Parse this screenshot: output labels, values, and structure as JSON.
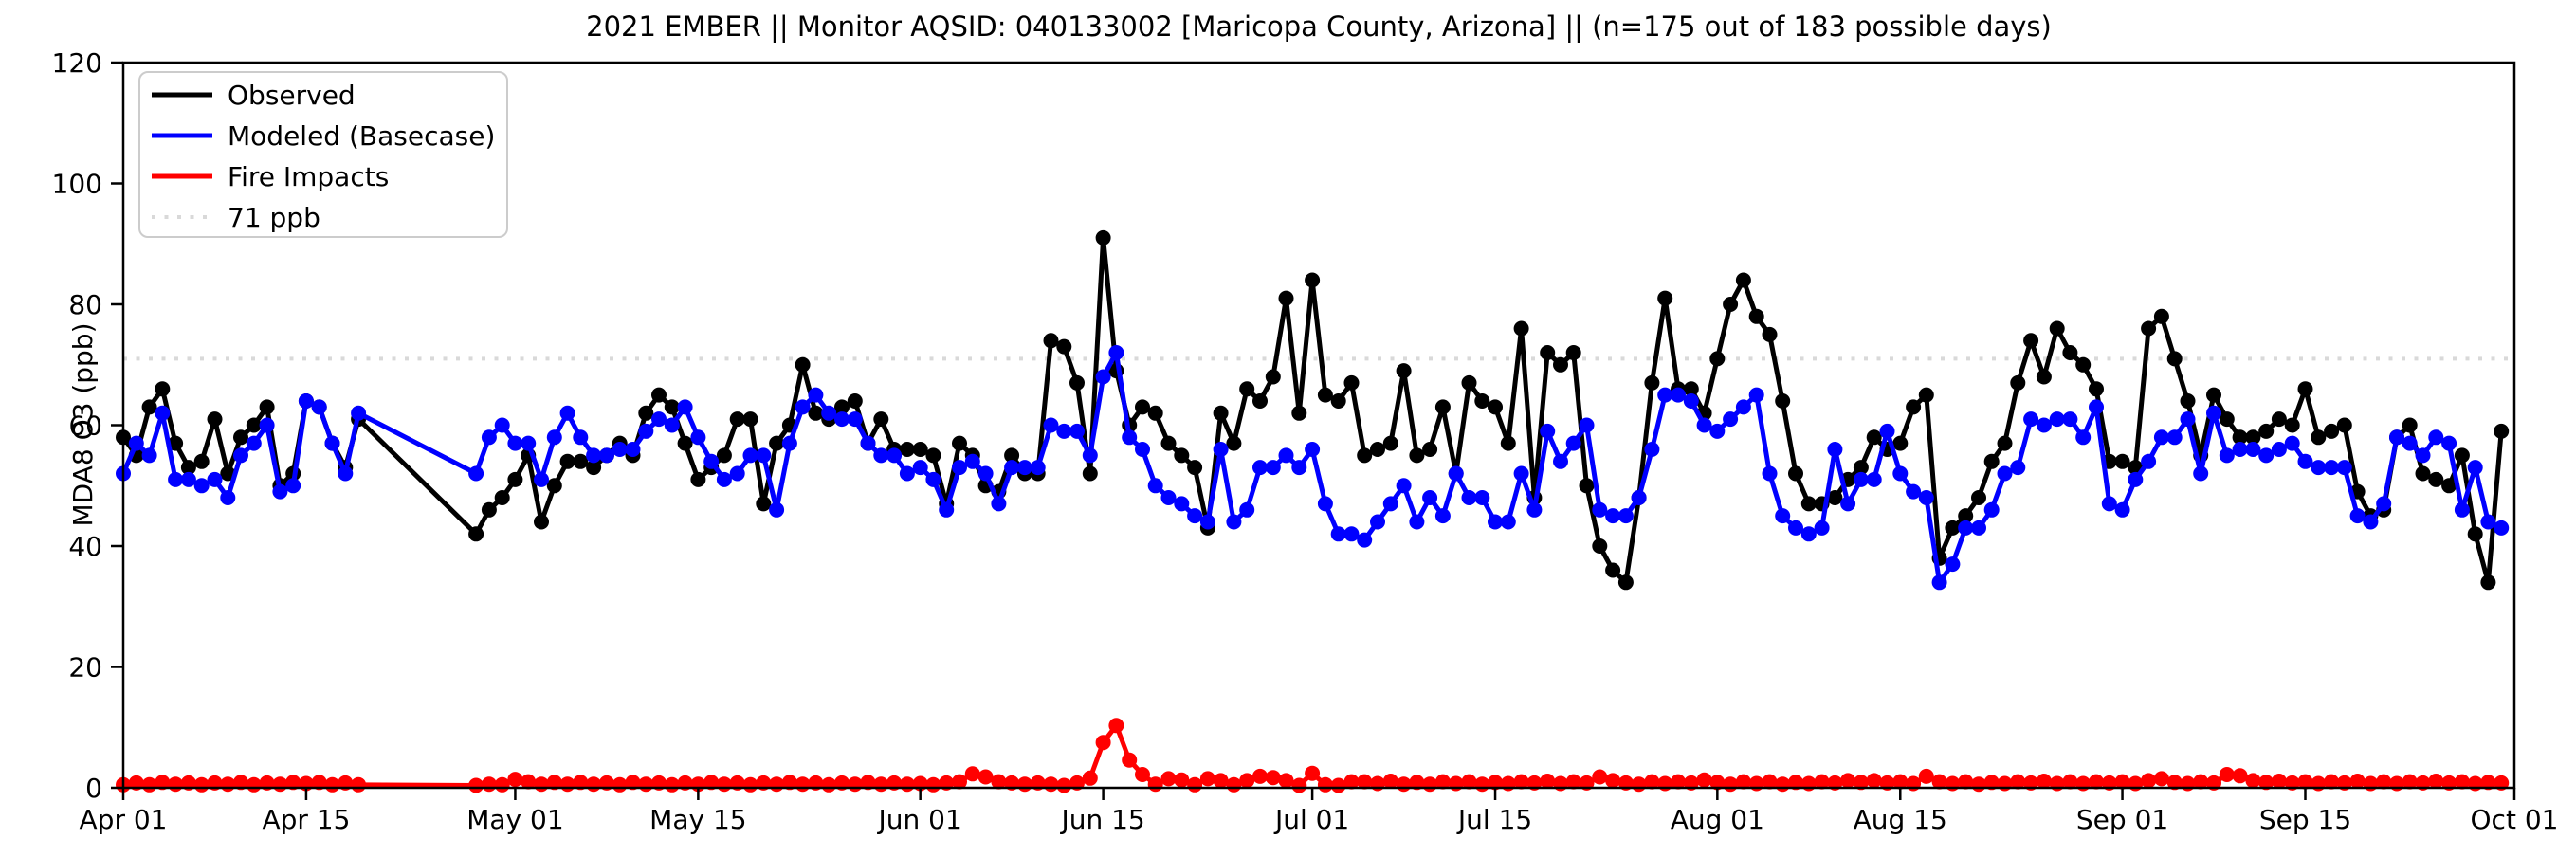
{
  "chart_data": {
    "type": "line",
    "title": "2021 EMBER || Monitor AQSID: 040133002 [Maricopa County, Arizona] || (n=175 out of 183 possible days)",
    "ylabel": "MDA8 O3 (ppb)",
    "ylim": [
      0,
      120
    ],
    "yticks": [
      0,
      20,
      40,
      60,
      80,
      100,
      120
    ],
    "grid": false,
    "legend_position": "upper left",
    "n_days": 183,
    "x_range": [
      "Apr 01",
      "Oct 01"
    ],
    "xticks": [
      {
        "label": "Apr 01",
        "day": 0
      },
      {
        "label": "Apr 15",
        "day": 14
      },
      {
        "label": "May 01",
        "day": 30
      },
      {
        "label": "May 15",
        "day": 44
      },
      {
        "label": "Jun 01",
        "day": 61
      },
      {
        "label": "Jun 15",
        "day": 75
      },
      {
        "label": "Jul 01",
        "day": 91
      },
      {
        "label": "Jul 15",
        "day": 105
      },
      {
        "label": "Aug 01",
        "day": 122
      },
      {
        "label": "Aug 15",
        "day": 136
      },
      {
        "label": "Sep 01",
        "day": 153
      },
      {
        "label": "Sep 15",
        "day": 167
      },
      {
        "label": "Oct 01",
        "day": 183
      }
    ],
    "threshold": {
      "value": 71,
      "label": "71 ppb",
      "color": "#d9d9d9",
      "style": "dotted"
    },
    "legend": [
      {
        "label": "Observed",
        "color": "#000000",
        "style": "solid"
      },
      {
        "label": "Modeled (Basecase)",
        "color": "#0000ff",
        "style": "solid"
      },
      {
        "label": "Fire Impacts",
        "color": "#ff0000",
        "style": "solid"
      },
      {
        "label": "71 ppb",
        "color": "#d9d9d9",
        "style": "dotted"
      }
    ],
    "series": [
      {
        "id": "observed",
        "name": "Observed",
        "color": "#000000",
        "values": [
          58,
          55,
          63,
          66,
          57,
          53,
          54,
          61,
          52,
          58,
          60,
          63,
          50,
          52,
          64,
          63,
          57,
          53,
          61,
          null,
          null,
          null,
          null,
          null,
          null,
          null,
          null,
          42,
          46,
          48,
          51,
          55,
          44,
          50,
          54,
          54,
          53,
          55,
          57,
          55,
          62,
          65,
          63,
          57,
          51,
          53,
          55,
          61,
          61,
          47,
          57,
          60,
          70,
          62,
          61,
          63,
          64,
          57,
          61,
          56,
          56,
          56,
          55,
          47,
          57,
          55,
          50,
          49,
          55,
          52,
          52,
          74,
          73,
          67,
          52,
          91,
          69,
          60,
          63,
          62,
          57,
          55,
          53,
          43,
          62,
          57,
          66,
          64,
          68,
          81,
          62,
          84,
          65,
          64,
          67,
          55,
          56,
          57,
          69,
          55,
          56,
          63,
          52,
          67,
          64,
          63,
          57,
          76,
          48,
          72,
          70,
          72,
          50,
          40,
          36,
          34,
          48,
          67,
          81,
          66,
          66,
          62,
          71,
          80,
          84,
          78,
          75,
          64,
          52,
          47,
          47,
          48,
          51,
          53,
          58,
          56,
          57,
          63,
          65,
          38,
          43,
          45,
          48,
          54,
          57,
          67,
          74,
          68,
          76,
          72,
          70,
          66,
          54,
          54,
          53,
          76,
          78,
          71,
          64,
          55,
          65,
          61,
          58,
          58,
          59,
          61,
          60,
          66,
          58,
          59,
          60,
          49,
          45,
          46,
          58,
          60,
          52,
          51,
          50,
          55,
          42,
          34,
          59
        ]
      },
      {
        "id": "modeled",
        "name": "Modeled (Basecase)",
        "color": "#0000ff",
        "values": [
          52,
          57,
          55,
          62,
          51,
          51,
          50,
          51,
          48,
          55,
          57,
          60,
          49,
          50,
          64,
          63,
          57,
          52,
          62,
          null,
          null,
          null,
          null,
          null,
          null,
          null,
          null,
          52,
          58,
          60,
          57,
          57,
          51,
          58,
          62,
          58,
          55,
          55,
          56,
          56,
          59,
          61,
          60,
          63,
          58,
          54,
          51,
          52,
          55,
          55,
          46,
          57,
          63,
          65,
          62,
          61,
          61,
          57,
          55,
          55,
          52,
          53,
          51,
          46,
          53,
          54,
          52,
          47,
          53,
          53,
          53,
          60,
          59,
          59,
          55,
          68,
          72,
          58,
          56,
          50,
          48,
          47,
          45,
          44,
          56,
          44,
          46,
          53,
          53,
          55,
          53,
          56,
          47,
          42,
          42,
          41,
          44,
          47,
          50,
          44,
          48,
          45,
          52,
          48,
          48,
          44,
          44,
          52,
          46,
          59,
          54,
          57,
          60,
          46,
          45,
          45,
          48,
          56,
          65,
          65,
          64,
          60,
          59,
          61,
          63,
          65,
          52,
          45,
          43,
          42,
          43,
          56,
          47,
          51,
          51,
          59,
          52,
          49,
          48,
          34,
          37,
          43,
          43,
          46,
          52,
          53,
          61,
          60,
          61,
          61,
          58,
          63,
          47,
          46,
          51,
          54,
          58,
          58,
          61,
          52,
          62,
          55,
          56,
          56,
          55,
          56,
          57,
          54,
          53,
          53,
          53,
          45,
          44,
          47,
          58,
          57,
          55,
          58,
          57,
          46,
          53,
          44,
          43
        ]
      },
      {
        "id": "fire",
        "name": "Fire Impacts",
        "color": "#ff0000",
        "values": [
          0.5,
          0.8,
          0.5,
          0.9,
          0.6,
          0.8,
          0.5,
          0.8,
          0.6,
          0.9,
          0.5,
          0.8,
          0.6,
          0.9,
          0.7,
          0.9,
          0.5,
          0.8,
          0.5,
          null,
          null,
          null,
          null,
          null,
          null,
          null,
          null,
          0.4,
          0.6,
          0.5,
          1.4,
          1.0,
          0.6,
          0.9,
          0.6,
          0.9,
          0.6,
          0.8,
          0.5,
          0.9,
          0.6,
          0.8,
          0.5,
          0.8,
          0.6,
          0.9,
          0.6,
          0.8,
          0.5,
          0.8,
          0.6,
          0.9,
          0.6,
          0.8,
          0.5,
          0.8,
          0.6,
          0.9,
          0.6,
          0.8,
          0.6,
          0.7,
          0.5,
          0.8,
          1.0,
          2.3,
          1.8,
          1.0,
          0.8,
          0.6,
          0.8,
          0.6,
          0.4,
          0.8,
          1.6,
          7.5,
          10.3,
          4.6,
          2.2,
          0.6,
          1.5,
          1.3,
          0.5,
          1.5,
          1.2,
          0.5,
          1.2,
          1.9,
          1.7,
          1.2,
          0.4,
          2.4,
          0.5,
          0.4,
          1.0,
          1.0,
          0.7,
          1.1,
          0.6,
          0.9,
          0.6,
          1.0,
          0.7,
          1.0,
          0.6,
          0.9,
          0.7,
          1.0,
          0.8,
          1.1,
          0.7,
          1.0,
          0.8,
          1.8,
          1.2,
          0.8,
          0.6,
          1.0,
          0.7,
          1.0,
          0.8,
          1.3,
          0.9,
          0.6,
          1.0,
          0.7,
          1.0,
          0.6,
          0.9,
          0.7,
          1.0,
          0.8,
          1.2,
          0.9,
          1.2,
          0.8,
          1.0,
          0.7,
          1.9,
          1.0,
          0.7,
          1.0,
          0.6,
          0.9,
          0.7,
          1.0,
          0.8,
          1.1,
          0.7,
          1.0,
          0.7,
          1.0,
          0.8,
          1.0,
          0.7,
          1.2,
          1.5,
          0.9,
          0.7,
          1.0,
          0.8,
          2.2,
          2.0,
          1.2,
          0.9,
          1.1,
          0.8,
          1.0,
          0.7,
          1.0,
          0.8,
          1.1,
          0.7,
          1.0,
          0.7,
          1.0,
          0.8,
          1.1,
          0.8,
          1.0,
          0.7,
          0.9,
          0.8
        ]
      }
    ]
  }
}
